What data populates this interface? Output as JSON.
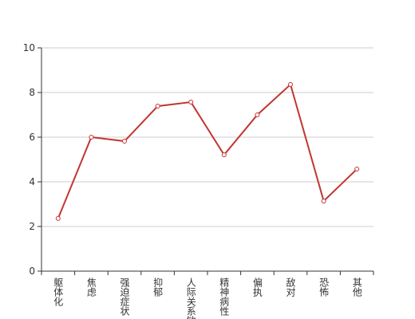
{
  "chart_data": {
    "type": "line",
    "categories": [
      "躯体化",
      "焦虑",
      "强迫症状",
      "抑郁",
      "人际关系敏感",
      "精神病性",
      "偏执",
      "敌对",
      "恐怖",
      "其他"
    ],
    "series": [
      {
        "color": "#c23531",
        "values": [
          2.36,
          6.0,
          5.82,
          7.39,
          7.57,
          5.21,
          7.0,
          8.36,
          3.14,
          4.57
        ]
      }
    ],
    "ylim": [
      0,
      10
    ],
    "yticks": [
      0,
      2,
      4,
      6,
      8,
      10
    ],
    "grid": true
  }
}
